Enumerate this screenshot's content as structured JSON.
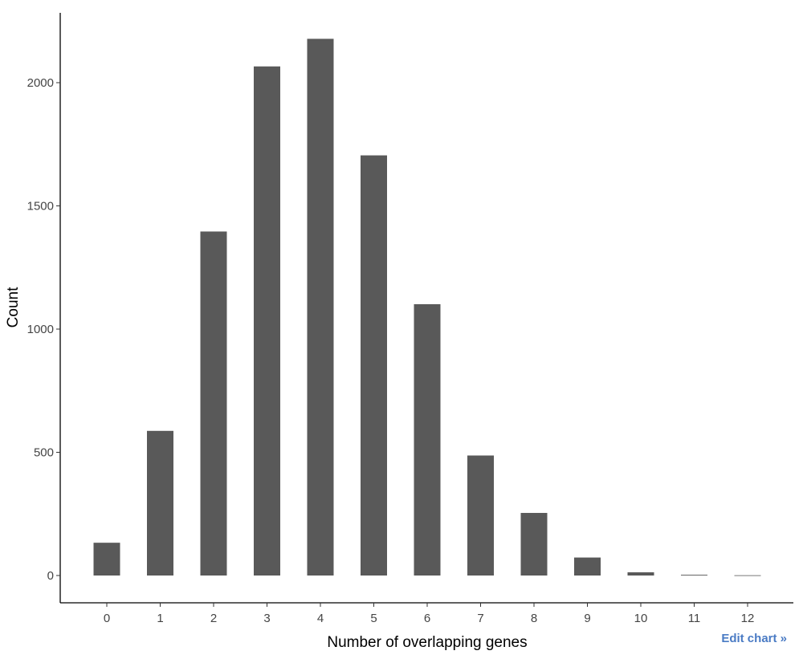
{
  "chart_data": {
    "type": "bar",
    "categories": [
      "0",
      "1",
      "2",
      "3",
      "4",
      "5",
      "6",
      "7",
      "8",
      "9",
      "10",
      "11",
      "12"
    ],
    "values": [
      133,
      587,
      1396,
      2066,
      2178,
      1705,
      1101,
      487,
      254,
      73,
      13,
      3,
      1
    ],
    "xlabel": "Number of overlapping genes",
    "ylabel": "Count",
    "ylim": [
      0,
      2300
    ],
    "yticks": [
      0,
      500,
      1000,
      1500,
      2000
    ],
    "bar_color": "#595959",
    "grid": false,
    "legend": "none"
  },
  "edit_link": {
    "label": "Edit chart »",
    "color": "#4a7bc4"
  }
}
